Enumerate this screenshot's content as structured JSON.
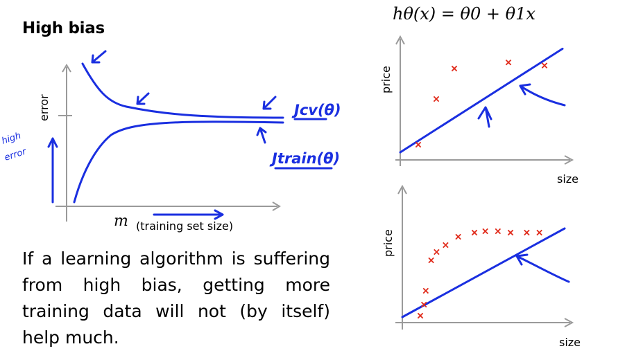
{
  "slide": {
    "title": "High bias",
    "formula": "hθ(x) = θ0 + θ1x",
    "body_text": "If a learning algorithm is suffering from high bias, getting more training data will not (by itself) help much."
  },
  "learning_curve": {
    "ylabel": "error",
    "xlabel_symbol": "m",
    "xlabel_text": "(training set size)",
    "annotations": {
      "high_error": [
        "high",
        "error"
      ],
      "j_cv": "Jcv(θ)",
      "j_train": "Jtrain(θ)"
    }
  },
  "colors": {
    "ink": "#1a2fe0",
    "marker": "#e02a1a",
    "axis": "#9a9a9a"
  },
  "chart_data": [
    {
      "type": "scatter",
      "xlabel": "size",
      "ylabel": "price",
      "series": [
        {
          "x": [
            1,
            2,
            3,
            6,
            8
          ],
          "y": [
            1,
            4,
            6,
            6.4,
            6.2
          ]
        }
      ],
      "fit_line": {
        "x": [
          0,
          9
        ],
        "y": [
          0.5,
          7.3
        ]
      }
    },
    {
      "type": "scatter",
      "xlabel": "size",
      "ylabel": "price",
      "series": [
        {
          "x": [
            1,
            1.2,
            1.3,
            1.6,
            1.9,
            2.4,
            3.1,
            4,
            4.6,
            5.3,
            6,
            6.9,
            7.6
          ],
          "y": [
            0.5,
            1.3,
            2.3,
            4.5,
            5.1,
            5.6,
            6.2,
            6.5,
            6.6,
            6.6,
            6.5,
            6.5,
            6.5
          ]
        }
      ],
      "fit_line": {
        "x": [
          0,
          9
        ],
        "y": [
          0.4,
          6.8
        ]
      }
    }
  ]
}
